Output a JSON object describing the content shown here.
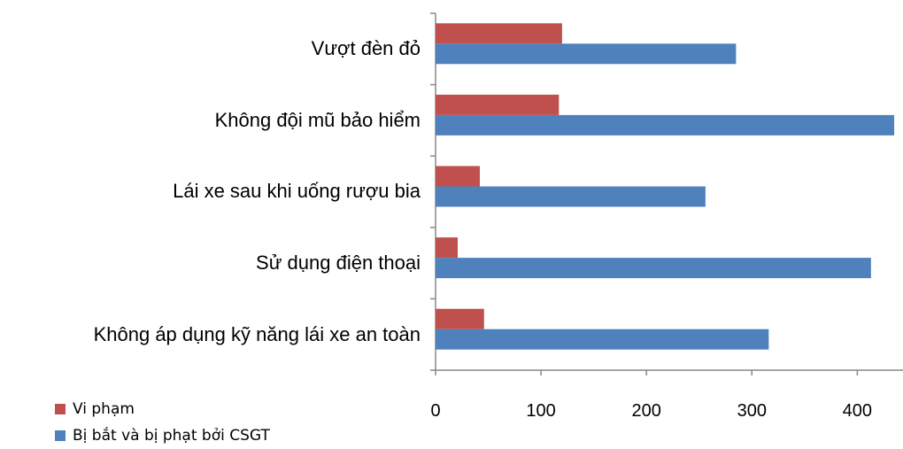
{
  "chart_data": {
    "type": "barh",
    "categories": [
      "Vượt đèn đỏ",
      "Không đội mũ bảo hiểm",
      "Lái xe sau khi uống rượu bia",
      "Sử dụng điện thoại",
      "Không áp dụng kỹ năng lái xe an toàn"
    ],
    "series": [
      {
        "name": "Vi phạm",
        "color": "#c0504d",
        "values": [
          120,
          117,
          42,
          21,
          46
        ]
      },
      {
        "name": "Bị bắt và bị phạt bởi CSGT",
        "color": "#4f81bd",
        "values": [
          285,
          435,
          256,
          413,
          316
        ]
      }
    ],
    "xlim": [
      0,
      440
    ],
    "xticks": [
      0,
      100,
      200,
      300,
      400
    ],
    "legend": "bottom-left",
    "grid": false
  }
}
